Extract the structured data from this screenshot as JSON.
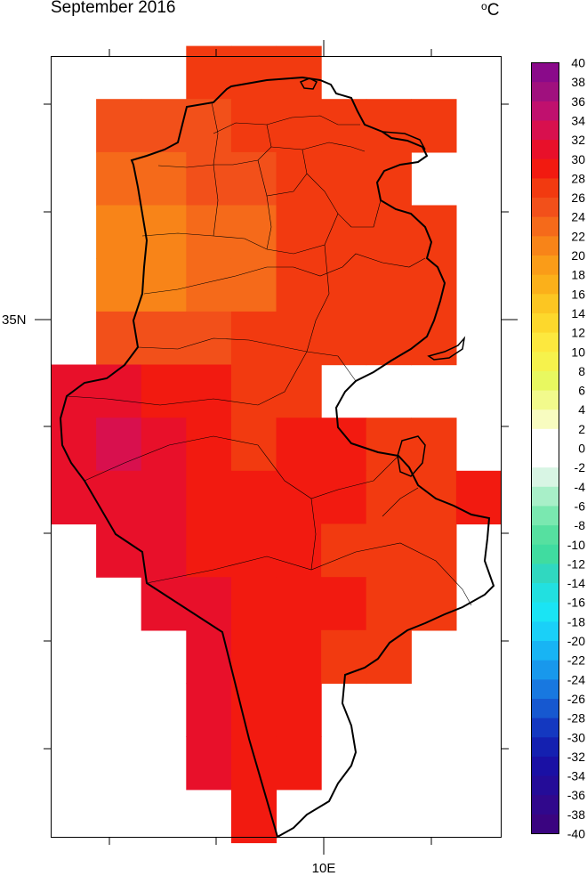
{
  "title": "September 2016",
  "units": {
    "prefix": "o",
    "label": "C"
  },
  "axes": {
    "lat_label": "35N",
    "lon_label": "10E"
  },
  "colorbar": {
    "levels": [
      40,
      38,
      36,
      34,
      32,
      30,
      28,
      26,
      24,
      22,
      20,
      18,
      16,
      14,
      12,
      10,
      8,
      6,
      4,
      2,
      0,
      -2,
      -4,
      -6,
      -8,
      -10,
      -12,
      -14,
      -16,
      -18,
      -20,
      -22,
      -24,
      -26,
      -28,
      -30,
      -32,
      -34,
      -36,
      -38,
      -40
    ],
    "colors": [
      "#8a0a8a",
      "#a0107e",
      "#c0106e",
      "#d8104e",
      "#e8102a",
      "#f21a10",
      "#f23a10",
      "#f2501a",
      "#f56a1a",
      "#f88418",
      "#fa9c18",
      "#fbb01a",
      "#fcc622",
      "#fdd82c",
      "#fde83e",
      "#f6f24c",
      "#e8f860",
      "#f2fa8c",
      "#f8fcc0",
      "#ffffff",
      "#ffffff",
      "#d8f5e4",
      "#a8efc8",
      "#7ae8b0",
      "#56e0a0",
      "#40dca0",
      "#30d8c0",
      "#22e0e0",
      "#1ae4f4",
      "#1ad0f8",
      "#18b4f4",
      "#1898ec",
      "#1878e0",
      "#1658d0",
      "#1438c0",
      "#1420b0",
      "#1a10a4",
      "#240c98",
      "#30088c",
      "#3a0480"
    ]
  },
  "chart_data": {
    "type": "heatmap",
    "title": "September 2016",
    "units": "°C",
    "grid_rows": [
      {
        "lat": 37.5,
        "cells": [
          {
            "lon": 9.25,
            "v": 27
          },
          {
            "lon": 9.75,
            "v": 27
          },
          {
            "lon": 10.25,
            "v": 27
          }
        ]
      },
      {
        "lat": 37.0,
        "cells": [
          {
            "lon": 8.25,
            "v": 26
          },
          {
            "lon": 8.75,
            "v": 26
          },
          {
            "lon": 9.25,
            "v": 25
          },
          {
            "lon": 9.75,
            "v": 27
          },
          {
            "lon": 10.25,
            "v": 27
          },
          {
            "lon": 10.75,
            "v": 27
          },
          {
            "lon": 11.25,
            "v": 27
          },
          {
            "lon": 11.75,
            "v": 27
          }
        ]
      },
      {
        "lat": 36.5,
        "cells": [
          {
            "lon": 8.25,
            "v": 23
          },
          {
            "lon": 8.75,
            "v": 24
          },
          {
            "lon": 9.25,
            "v": 25
          },
          {
            "lon": 9.75,
            "v": 26
          },
          {
            "lon": 10.25,
            "v": 28
          },
          {
            "lon": 10.75,
            "v": 28
          },
          {
            "lon": 11.25,
            "v": 27
          }
        ]
      },
      {
        "lat": 36.0,
        "cells": [
          {
            "lon": 8.25,
            "v": 22
          },
          {
            "lon": 8.75,
            "v": 22
          },
          {
            "lon": 9.25,
            "v": 23
          },
          {
            "lon": 9.75,
            "v": 24
          },
          {
            "lon": 10.25,
            "v": 27
          },
          {
            "lon": 10.75,
            "v": 27
          },
          {
            "lon": 11.25,
            "v": 28
          },
          {
            "lon": 11.75,
            "v": 27
          }
        ]
      },
      {
        "lat": 35.5,
        "cells": [
          {
            "lon": 8.25,
            "v": 22
          },
          {
            "lon": 8.75,
            "v": 22
          },
          {
            "lon": 9.25,
            "v": 23
          },
          {
            "lon": 9.75,
            "v": 24
          },
          {
            "lon": 10.25,
            "v": 27
          },
          {
            "lon": 10.75,
            "v": 27
          },
          {
            "lon": 11.25,
            "v": 27
          },
          {
            "lon": 11.75,
            "v": 27
          }
        ]
      },
      {
        "lat": 35.0,
        "cells": [
          {
            "lon": 8.25,
            "v": 26
          },
          {
            "lon": 8.75,
            "v": 26
          },
          {
            "lon": 9.25,
            "v": 26
          },
          {
            "lon": 9.75,
            "v": 27
          },
          {
            "lon": 10.25,
            "v": 27
          },
          {
            "lon": 10.75,
            "v": 27
          },
          {
            "lon": 11.25,
            "v": 27
          },
          {
            "lon": 11.75,
            "v": 27
          }
        ]
      },
      {
        "lat": 34.5,
        "cells": [
          {
            "lon": 7.75,
            "v": 31
          },
          {
            "lon": 8.25,
            "v": 31
          },
          {
            "lon": 8.75,
            "v": 30
          },
          {
            "lon": 9.25,
            "v": 29
          },
          {
            "lon": 9.75,
            "v": 28
          },
          {
            "lon": 10.25,
            "v": 28
          }
        ]
      },
      {
        "lat": 34.0,
        "cells": [
          {
            "lon": 7.75,
            "v": 32
          },
          {
            "lon": 8.25,
            "v": 33
          },
          {
            "lon": 8.75,
            "v": 32
          },
          {
            "lon": 9.25,
            "v": 30
          },
          {
            "lon": 9.75,
            "v": 28
          },
          {
            "lon": 10.25,
            "v": 29
          },
          {
            "lon": 10.75,
            "v": 29
          },
          {
            "lon": 11.25,
            "v": 28
          },
          {
            "lon": 11.75,
            "v": 28
          }
        ]
      },
      {
        "lat": 33.5,
        "cells": [
          {
            "lon": 7.75,
            "v": 32
          },
          {
            "lon": 8.25,
            "v": 32
          },
          {
            "lon": 8.75,
            "v": 32
          },
          {
            "lon": 9.25,
            "v": 30
          },
          {
            "lon": 9.75,
            "v": 30
          },
          {
            "lon": 10.25,
            "v": 29
          },
          {
            "lon": 10.75,
            "v": 29
          },
          {
            "lon": 11.25,
            "v": 28
          },
          {
            "lon": 11.75,
            "v": 28
          },
          {
            "lon": 12.25,
            "v": 30
          }
        ]
      },
      {
        "lat": 33.0,
        "cells": [
          {
            "lon": 8.25,
            "v": 32
          },
          {
            "lon": 8.75,
            "v": 32
          },
          {
            "lon": 9.25,
            "v": 30
          },
          {
            "lon": 9.75,
            "v": 29
          },
          {
            "lon": 10.25,
            "v": 29
          },
          {
            "lon": 10.75,
            "v": 28
          },
          {
            "lon": 11.25,
            "v": 28
          },
          {
            "lon": 11.75,
            "v": 28
          }
        ]
      },
      {
        "lat": 32.5,
        "cells": [
          {
            "lon": 8.75,
            "v": 32
          },
          {
            "lon": 9.25,
            "v": 31
          },
          {
            "lon": 9.75,
            "v": 29
          },
          {
            "lon": 10.25,
            "v": 29
          },
          {
            "lon": 10.75,
            "v": 29
          },
          {
            "lon": 11.25,
            "v": 28
          },
          {
            "lon": 11.75,
            "v": 28
          }
        ]
      },
      {
        "lat": 32.0,
        "cells": [
          {
            "lon": 9.25,
            "v": 31
          },
          {
            "lon": 9.75,
            "v": 30
          },
          {
            "lon": 10.25,
            "v": 29
          },
          {
            "lon": 10.75,
            "v": 28
          },
          {
            "lon": 11.25,
            "v": 27
          }
        ]
      },
      {
        "lat": 31.5,
        "cells": [
          {
            "lon": 9.25,
            "v": 31
          },
          {
            "lon": 9.75,
            "v": 30
          },
          {
            "lon": 10.25,
            "v": 29
          }
        ]
      },
      {
        "lat": 31.0,
        "cells": [
          {
            "lon": 9.25,
            "v": 31
          },
          {
            "lon": 9.75,
            "v": 30
          },
          {
            "lon": 10.25,
            "v": 29
          }
        ]
      },
      {
        "lat": 30.5,
        "cells": [
          {
            "lon": 9.75,
            "v": 30
          }
        ]
      }
    ],
    "x_ticks": [
      {
        "lon": 10,
        "label": "10E"
      }
    ],
    "y_ticks": [
      {
        "lat": 35,
        "label": "35N"
      }
    ],
    "xlim": [
      7.5,
      12.5
    ],
    "ylim": [
      30.3,
      37.65
    ],
    "colorbar_range": [
      -40,
      40
    ],
    "colorbar_step": 2
  }
}
